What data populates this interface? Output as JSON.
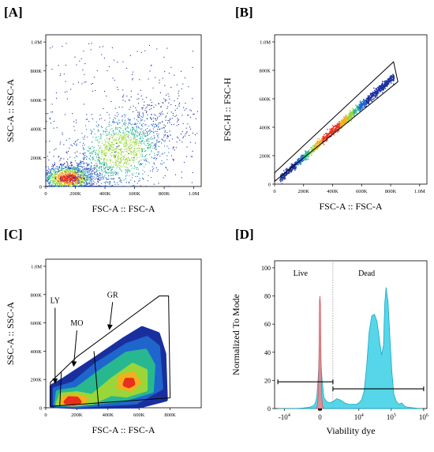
{
  "chart_data": [
    {
      "panel": "[A]",
      "type": "scatter",
      "xlabel": "FSC-A :: FSC-A",
      "ylabel": "SSC-A :: SSC-A",
      "x_ticks": [
        "0",
        "200K",
        "400K",
        "600K",
        "800K",
        "1.0M"
      ],
      "y_ticks": [
        "0",
        "200K",
        "400K",
        "600K",
        "800K",
        "1.0M"
      ],
      "xlim": [
        0,
        1050000
      ],
      "ylim": [
        0,
        1050000
      ],
      "populations": [
        {
          "center": [
            150000,
            60000
          ],
          "spread": [
            90000,
            45000
          ],
          "density": "high"
        },
        {
          "center": [
            500000,
            250000
          ],
          "spread": [
            200000,
            160000
          ],
          "density": "medium"
        },
        {
          "center": [
            520000,
            500000
          ],
          "spread": [
            350000,
            350000
          ],
          "density": "low"
        }
      ]
    },
    {
      "panel": "[B]",
      "type": "scatter",
      "xlabel": "FSC-A :: FSC-A",
      "ylabel": "FSC-H :: FSC-H",
      "x_ticks": [
        "0",
        "200K",
        "400K",
        "600K",
        "800K",
        "1.0M"
      ],
      "y_ticks": [
        "0",
        "200K",
        "400K",
        "600K",
        "800K",
        "1.0M"
      ],
      "xlim": [
        0,
        1050000
      ],
      "ylim": [
        0,
        1050000
      ],
      "diagonal_from": [
        30000,
        40000
      ],
      "diagonal_to": [
        820000,
        760000
      ],
      "gate_polygon": [
        [
          0,
          20000
        ],
        [
          0,
          80000
        ],
        [
          820000,
          860000
        ],
        [
          850000,
          720000
        ]
      ]
    },
    {
      "panel": "[C]",
      "type": "heatmap",
      "xlabel": "FSC-A :: FSC-A",
      "ylabel": "SSC-A :: SSC-A",
      "x_ticks": [
        "0",
        "200K",
        "400K",
        "600K",
        "800K"
      ],
      "y_ticks": [
        "0",
        "200K",
        "400K",
        "600K",
        "800K",
        "1.0M"
      ],
      "xlim": [
        0,
        1000000
      ],
      "ylim": [
        0,
        1050000
      ],
      "gate_polygon": [
        [
          30000,
          10000
        ],
        [
          30000,
          180000
        ],
        [
          200000,
          360000
        ],
        [
          730000,
          790000
        ],
        [
          790000,
          790000
        ],
        [
          800000,
          70000
        ]
      ],
      "annotations": [
        {
          "text": "LY",
          "text_at": [
            60000,
            740000
          ],
          "arrow_to": [
            60000,
            180000
          ]
        },
        {
          "text": "MO",
          "text_at": [
            200000,
            580000
          ],
          "arrow_to": [
            180000,
            300000
          ]
        },
        {
          "text": "GR",
          "text_at": [
            430000,
            780000
          ],
          "arrow_to": [
            410000,
            560000
          ]
        }
      ],
      "gate_dividers": [
        [
          [
            90000,
            10000
          ],
          [
            100000,
            250000
          ]
        ],
        [
          [
            340000,
            10000
          ],
          [
            310000,
            400000
          ]
        ]
      ]
    },
    {
      "panel": "[D]",
      "type": "area",
      "xlabel": "Viability dye",
      "ylabel": "Normalized To Mode",
      "x_ticks": [
        "-10^4",
        "0",
        "10^4",
        "10^5",
        "10^6"
      ],
      "y_ticks": [
        "0",
        "20",
        "40",
        "60",
        "80",
        "100"
      ],
      "ylim": [
        0,
        105
      ],
      "series": [
        {
          "color": "#1ec8e0",
          "x": [
            -0.65,
            -0.52,
            -0.4,
            -0.28,
            -0.16,
            -0.1,
            -0.07,
            -0.05,
            -0.03,
            -0.01,
            0.0,
            0.01,
            0.03,
            0.06,
            0.1,
            0.15,
            0.2,
            0.26,
            0.32,
            0.38,
            0.44,
            0.5,
            0.56,
            0.6,
            0.64,
            0.68,
            0.72,
            0.76,
            0.8,
            0.84,
            0.88,
            0.92,
            0.95,
            0.98,
            1.0,
            1.02,
            1.05,
            1.08,
            1.11,
            1.14,
            1.18,
            1.22,
            1.26,
            1.3,
            1.34,
            1.38,
            1.42,
            1.46,
            1.5,
            1.54,
            1.58
          ],
          "y": [
            0,
            0,
            0,
            0.3,
            1,
            2,
            4,
            8,
            20,
            38,
            44,
            38,
            22,
            8,
            5,
            4,
            5,
            7,
            6,
            4,
            3,
            3,
            3,
            4,
            6,
            12,
            30,
            55,
            66,
            67,
            62,
            48,
            38,
            45,
            75,
            86,
            76,
            50,
            26,
            10,
            5,
            3,
            4,
            2,
            1,
            1,
            0.6,
            0.4,
            0.2,
            0.1,
            0
          ]
        },
        {
          "color": "#e9888d",
          "x": [
            -0.06,
            -0.04,
            -0.025,
            -0.015,
            -0.008,
            0.0,
            0.008,
            0.015,
            0.025,
            0.04,
            0.06
          ],
          "y": [
            0,
            2,
            10,
            40,
            76,
            80,
            74,
            40,
            10,
            2,
            0
          ]
        }
      ],
      "annotations": [
        {
          "text": "Live",
          "x": -0.3,
          "y": 96
        },
        {
          "text": "Dead",
          "x": 0.72,
          "y": 96
        }
      ],
      "divider_x": 0.2,
      "gates": [
        {
          "label": "Live",
          "x_range": [
            -0.65,
            0.2
          ],
          "y": 19
        },
        {
          "label": "Dead",
          "x_range": [
            0.2,
            1.6
          ],
          "y": 14
        }
      ]
    }
  ]
}
